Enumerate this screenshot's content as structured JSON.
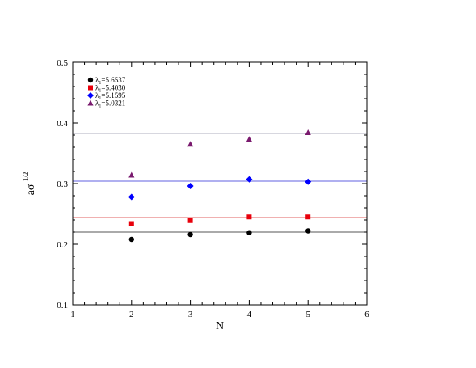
{
  "chart_data": {
    "type": "scatter",
    "xlabel": "N",
    "ylabel": "aσ",
    "ylabel_superscript": "1/2",
    "xlim": [
      1,
      6
    ],
    "ylim": [
      0.1,
      0.5
    ],
    "x_ticks": [
      "1",
      "2",
      "3",
      "4",
      "5",
      "6"
    ],
    "y_ticks": [
      "0.1",
      "0.2",
      "0.3",
      "0.4",
      "0.5"
    ],
    "grid": false,
    "legend_position": "top-left",
    "series": [
      {
        "name": "λ",
        "name_subscript": "1",
        "name_suffix": "=5.6537",
        "marker": "circle",
        "color": "#000000",
        "line_color": "#555555",
        "reference_line": 0.22,
        "x": [
          2,
          3,
          4,
          5
        ],
        "y": [
          0.208,
          0.216,
          0.219,
          0.222
        ]
      },
      {
        "name": "λ",
        "name_subscript": "1",
        "name_suffix": "=5.4030",
        "marker": "square",
        "color": "#e8000b",
        "line_color": "#e06060",
        "reference_line": 0.244,
        "x": [
          2,
          3,
          4,
          5
        ],
        "y": [
          0.234,
          0.239,
          0.245,
          0.245
        ]
      },
      {
        "name": "λ",
        "name_subscript": "1",
        "name_suffix": "=5.1595",
        "marker": "diamond",
        "color": "#0000ff",
        "line_color": "#6060e0",
        "reference_line": 0.304,
        "x": [
          2,
          3,
          4,
          5
        ],
        "y": [
          0.278,
          0.296,
          0.307,
          0.303
        ]
      },
      {
        "name": "λ",
        "name_subscript": "1",
        "name_suffix": "=5.0321",
        "marker": "triangle",
        "color": "#7a1a6e",
        "line_color": "#606080",
        "reference_line": 0.383,
        "x": [
          2,
          3,
          4,
          5
        ],
        "y": [
          0.314,
          0.365,
          0.373,
          0.384
        ]
      }
    ]
  }
}
